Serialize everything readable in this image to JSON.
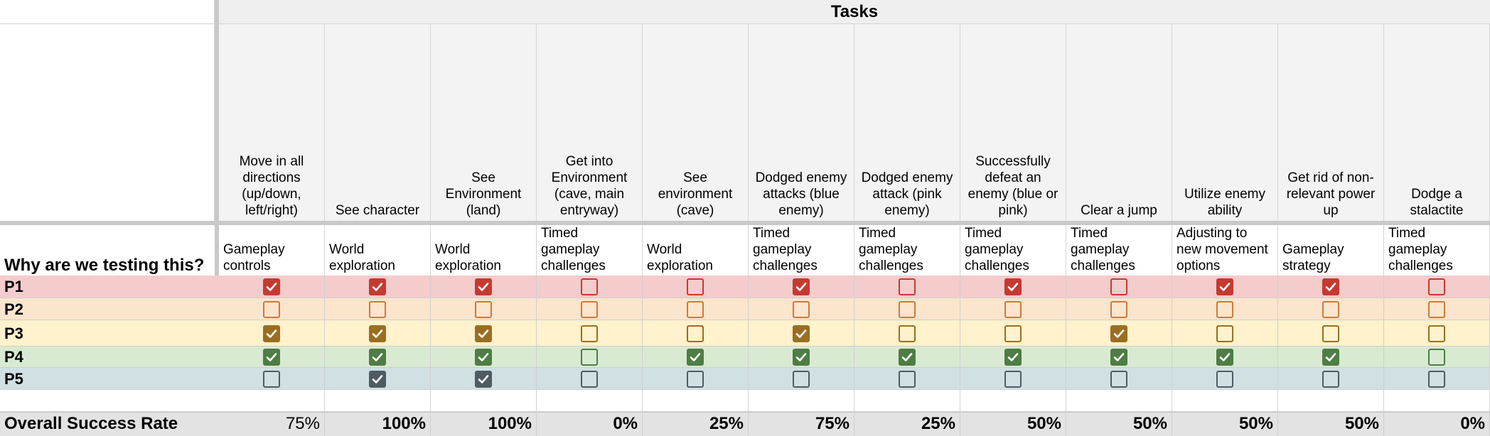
{
  "tasks_header": "Tasks",
  "why_label": "Why are we testing this?",
  "overall_label": "Overall Success Rate",
  "tasks": [
    {
      "name": "Move in all directions (up/down, left/right)",
      "reason": "Gameplay controls",
      "rate": "75%",
      "rate_bold": false
    },
    {
      "name": "See character",
      "reason": "World exploration",
      "rate": "100%",
      "rate_bold": true
    },
    {
      "name": "See Environment (land)",
      "reason": "World exploration",
      "rate": "100%",
      "rate_bold": true
    },
    {
      "name": "Get into Environment (cave, main entryway)",
      "reason": "Timed gameplay challenges",
      "rate": "0%",
      "rate_bold": true
    },
    {
      "name": "See environment (cave)",
      "reason": "World exploration",
      "rate": "25%",
      "rate_bold": true
    },
    {
      "name": "Dodged enemy attacks (blue enemy)",
      "reason": "Timed gameplay challenges",
      "rate": "75%",
      "rate_bold": true
    },
    {
      "name": "Dodged enemy attack (pink enemy)",
      "reason": "Timed gameplay challenges",
      "rate": "25%",
      "rate_bold": true
    },
    {
      "name": "Successfully defeat an enemy (blue or pink)",
      "reason": "Timed gameplay challenges",
      "rate": "50%",
      "rate_bold": true
    },
    {
      "name": "Clear a jump",
      "reason": "Timed gameplay challenges",
      "rate": "50%",
      "rate_bold": true
    },
    {
      "name": "Utilize enemy ability",
      "reason": "Adjusting to new movement options",
      "rate": "50%",
      "rate_bold": true
    },
    {
      "name": "Get rid of non-relevant power up",
      "reason": "Gameplay strategy",
      "rate": "50%",
      "rate_bold": true
    },
    {
      "name": "Dodge a stalactite",
      "reason": "Timed gameplay challenges",
      "rate": "0%",
      "rate_bold": true
    }
  ],
  "participants": [
    {
      "label": "P1",
      "bg": "#f4cccc",
      "color": "#c53a30",
      "checks": [
        true,
        true,
        true,
        false,
        false,
        true,
        false,
        true,
        false,
        true,
        true,
        false
      ]
    },
    {
      "label": "P2",
      "bg": "#fce5cd",
      "color": "#cc7a3c",
      "checks": [
        false,
        false,
        false,
        false,
        false,
        false,
        false,
        false,
        false,
        false,
        false,
        false
      ]
    },
    {
      "label": "P3",
      "bg": "#fff2cc",
      "color": "#9a6e22",
      "checks": [
        true,
        true,
        true,
        false,
        false,
        true,
        false,
        false,
        true,
        false,
        false,
        false
      ]
    },
    {
      "label": "P4",
      "bg": "#d9ead3",
      "color": "#4e7d45",
      "checks": [
        true,
        true,
        true,
        false,
        true,
        true,
        true,
        true,
        true,
        true,
        true,
        false
      ]
    },
    {
      "label": "P5",
      "bg": "#d0e0e3",
      "color": "#4f5b63",
      "checks": [
        false,
        true,
        true,
        false,
        false,
        false,
        false,
        false,
        false,
        false,
        false,
        false
      ]
    }
  ]
}
